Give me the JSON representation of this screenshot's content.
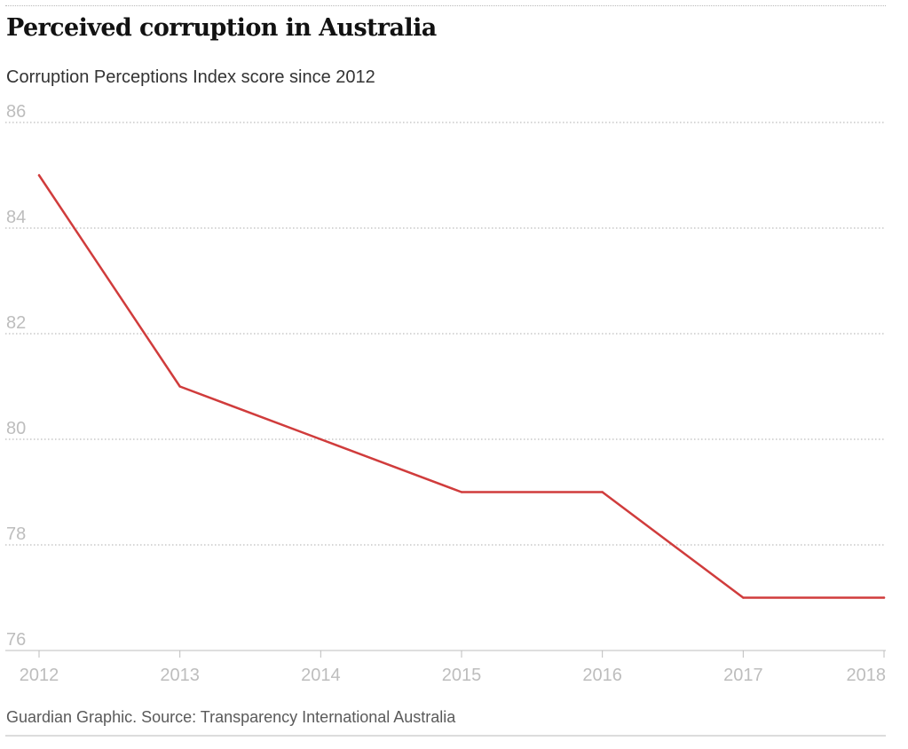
{
  "header": {
    "title": "Perceived corruption in Australia",
    "subtitle": "Corruption Perceptions Index score since 2012"
  },
  "footer": {
    "source": "Guardian Graphic. Source: Transparency International Australia"
  },
  "colors": {
    "line": "#d03c3c",
    "grid": "#c8c8c8",
    "tick_text": "#bdbdbd",
    "axis": "#bdbdbd"
  },
  "chart_data": {
    "type": "line",
    "title": "Perceived corruption in Australia",
    "subtitle": "Corruption Perceptions Index score since 2012",
    "xlabel": "",
    "ylabel": "",
    "x": [
      2012,
      2013,
      2014,
      2015,
      2016,
      2017,
      2018
    ],
    "x_tick_labels": [
      "2012",
      "2013",
      "2014",
      "2015",
      "2016",
      "2017",
      "2018"
    ],
    "series": [
      {
        "name": "Corruption Perceptions Index score",
        "values": [
          85,
          81,
          80,
          79,
          79,
          77,
          77
        ]
      }
    ],
    "ylim": [
      76,
      86
    ],
    "y_ticks": [
      76,
      78,
      80,
      82,
      84,
      86
    ],
    "xlim": [
      2012,
      2018
    ],
    "grid": true
  }
}
